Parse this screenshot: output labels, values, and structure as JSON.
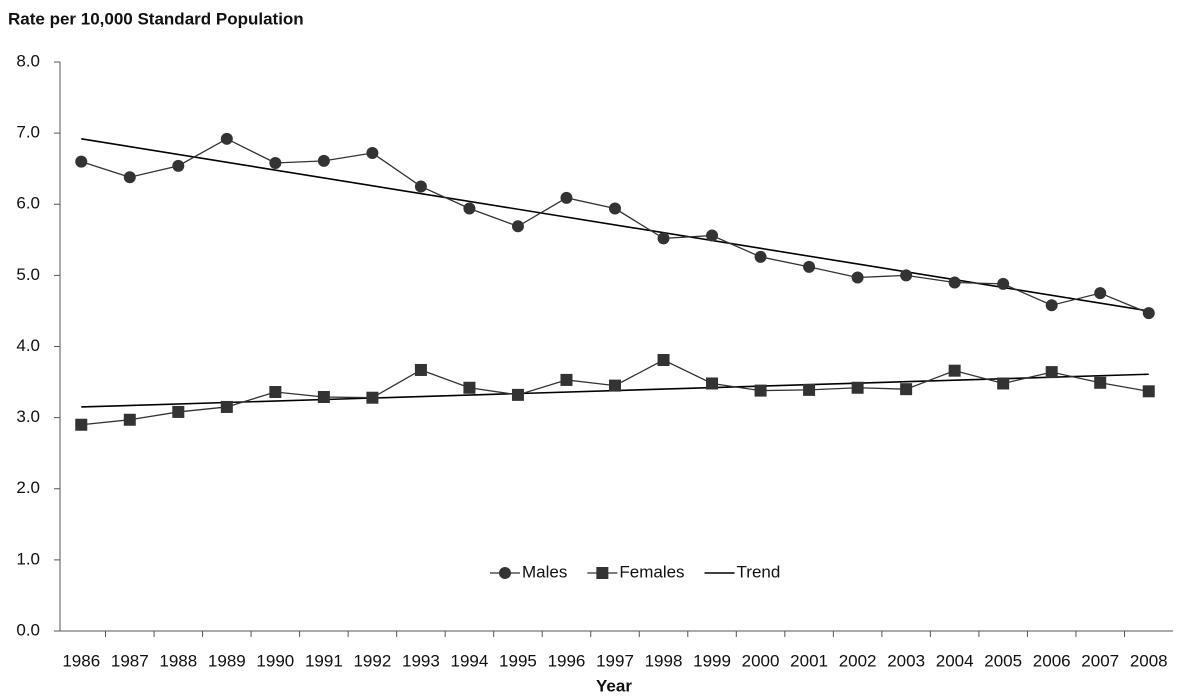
{
  "chart_data": {
    "type": "line",
    "y_label": "Rate per 10,000 Standard Population",
    "x_label": "Year",
    "categories": [
      "1986",
      "1987",
      "1988",
      "1989",
      "1990",
      "1991",
      "1992",
      "1993",
      "1994",
      "1995",
      "1996",
      "1997",
      "1998",
      "1999",
      "2000",
      "2001",
      "2002",
      "2003",
      "2004",
      "2005",
      "2006",
      "2007",
      "2008"
    ],
    "series": [
      {
        "name": "Males",
        "color": "#333333",
        "marker": "circle",
        "values": [
          6.6,
          6.38,
          6.54,
          6.92,
          6.58,
          6.61,
          6.72,
          6.25,
          5.94,
          5.69,
          6.09,
          5.94,
          5.52,
          5.56,
          5.26,
          5.12,
          4.97,
          5.0,
          4.9,
          4.88,
          4.58,
          4.75,
          4.47
        ]
      },
      {
        "name": "Females",
        "color": "#333333",
        "marker": "square",
        "values": [
          2.9,
          2.97,
          3.08,
          3.15,
          3.36,
          3.29,
          3.28,
          3.67,
          3.42,
          3.32,
          3.53,
          3.45,
          3.81,
          3.48,
          3.38,
          3.39,
          3.42,
          3.4,
          3.66,
          3.48,
          3.64,
          3.49,
          3.37
        ]
      }
    ],
    "trend": {
      "name": "Trend",
      "color": "#000000",
      "lines": [
        [
          6.92,
          4.5
        ],
        [
          3.15,
          3.61
        ]
      ]
    },
    "ylim": [
      0,
      8
    ],
    "yticks": [
      {
        "value": 0,
        "label": "0.0"
      },
      {
        "value": 1,
        "label": "1.0"
      },
      {
        "value": 2,
        "label": "2.0"
      },
      {
        "value": 3,
        "label": "3.0"
      },
      {
        "value": 4,
        "label": "4.0"
      },
      {
        "value": 5,
        "label": "5.0"
      },
      {
        "value": 6,
        "label": "6.0"
      },
      {
        "value": 7,
        "label": "7.0"
      },
      {
        "value": 8,
        "label": "8.0"
      }
    ]
  }
}
